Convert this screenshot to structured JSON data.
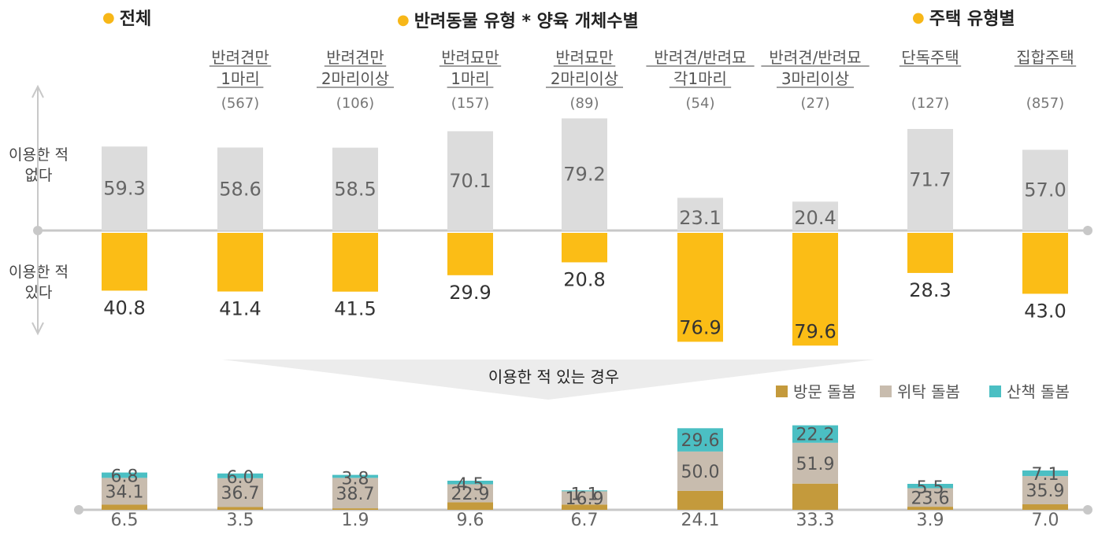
{
  "sections": {
    "total": "전체",
    "pet_type": "반려동물 유형 * 양육 개체수별",
    "housing": "주택 유형별"
  },
  "y_labels": {
    "not_used": "이용한 적\n없다",
    "used": "이용한 적\n있다"
  },
  "banner_label": "이용한 적 있는 경우",
  "colors": {
    "not_used": "#dcdcdc",
    "used": "#fbbd16",
    "visit": "#c49a3c",
    "boarding": "#c8bcae",
    "walk": "#4bbfc3",
    "axis": "#c8c8c8",
    "dot": "#f7b718"
  },
  "chart_data": [
    {
      "type": "bar",
      "title": "",
      "categories": [
        "",
        "반려견만\n1마리",
        "반려견만\n2마리이상",
        "반려묘만\n1마리",
        "반려묘만\n2마리이상",
        "반려견/반려묘\n각1마리",
        "반려견/반려묘\n3마리이상",
        "단독주택",
        "집합주택"
      ],
      "sample_sizes": [
        "",
        "(567)",
        "(106)",
        "(157)",
        "(89)",
        "(54)",
        "(27)",
        "(127)",
        "(857)"
      ],
      "series": [
        {
          "name": "이용한 적 없다",
          "values": [
            59.3,
            58.6,
            58.5,
            70.1,
            79.2,
            23.1,
            20.4,
            71.7,
            57.0
          ]
        },
        {
          "name": "이용한 적 있다",
          "values": [
            40.8,
            41.4,
            41.5,
            29.9,
            20.8,
            76.9,
            79.6,
            28.3,
            43.0
          ]
        }
      ]
    },
    {
      "type": "bar",
      "stacked": true,
      "title": "이용한 적 있는 경우",
      "categories": [
        "전체",
        "반려견만 1마리",
        "반려견만 2마리이상",
        "반려묘만 1마리",
        "반려묘만 2마리이상",
        "반려견/반려묘 각1마리",
        "반려견/반려묘 3마리이상",
        "단독주택",
        "집합주택"
      ],
      "legend": "top-right",
      "series": [
        {
          "name": "방문 돌봄",
          "values": [
            6.5,
            3.5,
            1.9,
            9.6,
            6.7,
            24.1,
            33.3,
            3.9,
            7.0
          ]
        },
        {
          "name": "위탁 돌봄",
          "values": [
            34.1,
            36.7,
            38.7,
            22.9,
            16.9,
            50.0,
            51.9,
            23.6,
            35.9
          ]
        },
        {
          "name": "산책 돌봄",
          "values": [
            6.8,
            6.0,
            3.8,
            4.5,
            1.1,
            29.6,
            22.2,
            5.5,
            7.1
          ]
        }
      ]
    }
  ]
}
